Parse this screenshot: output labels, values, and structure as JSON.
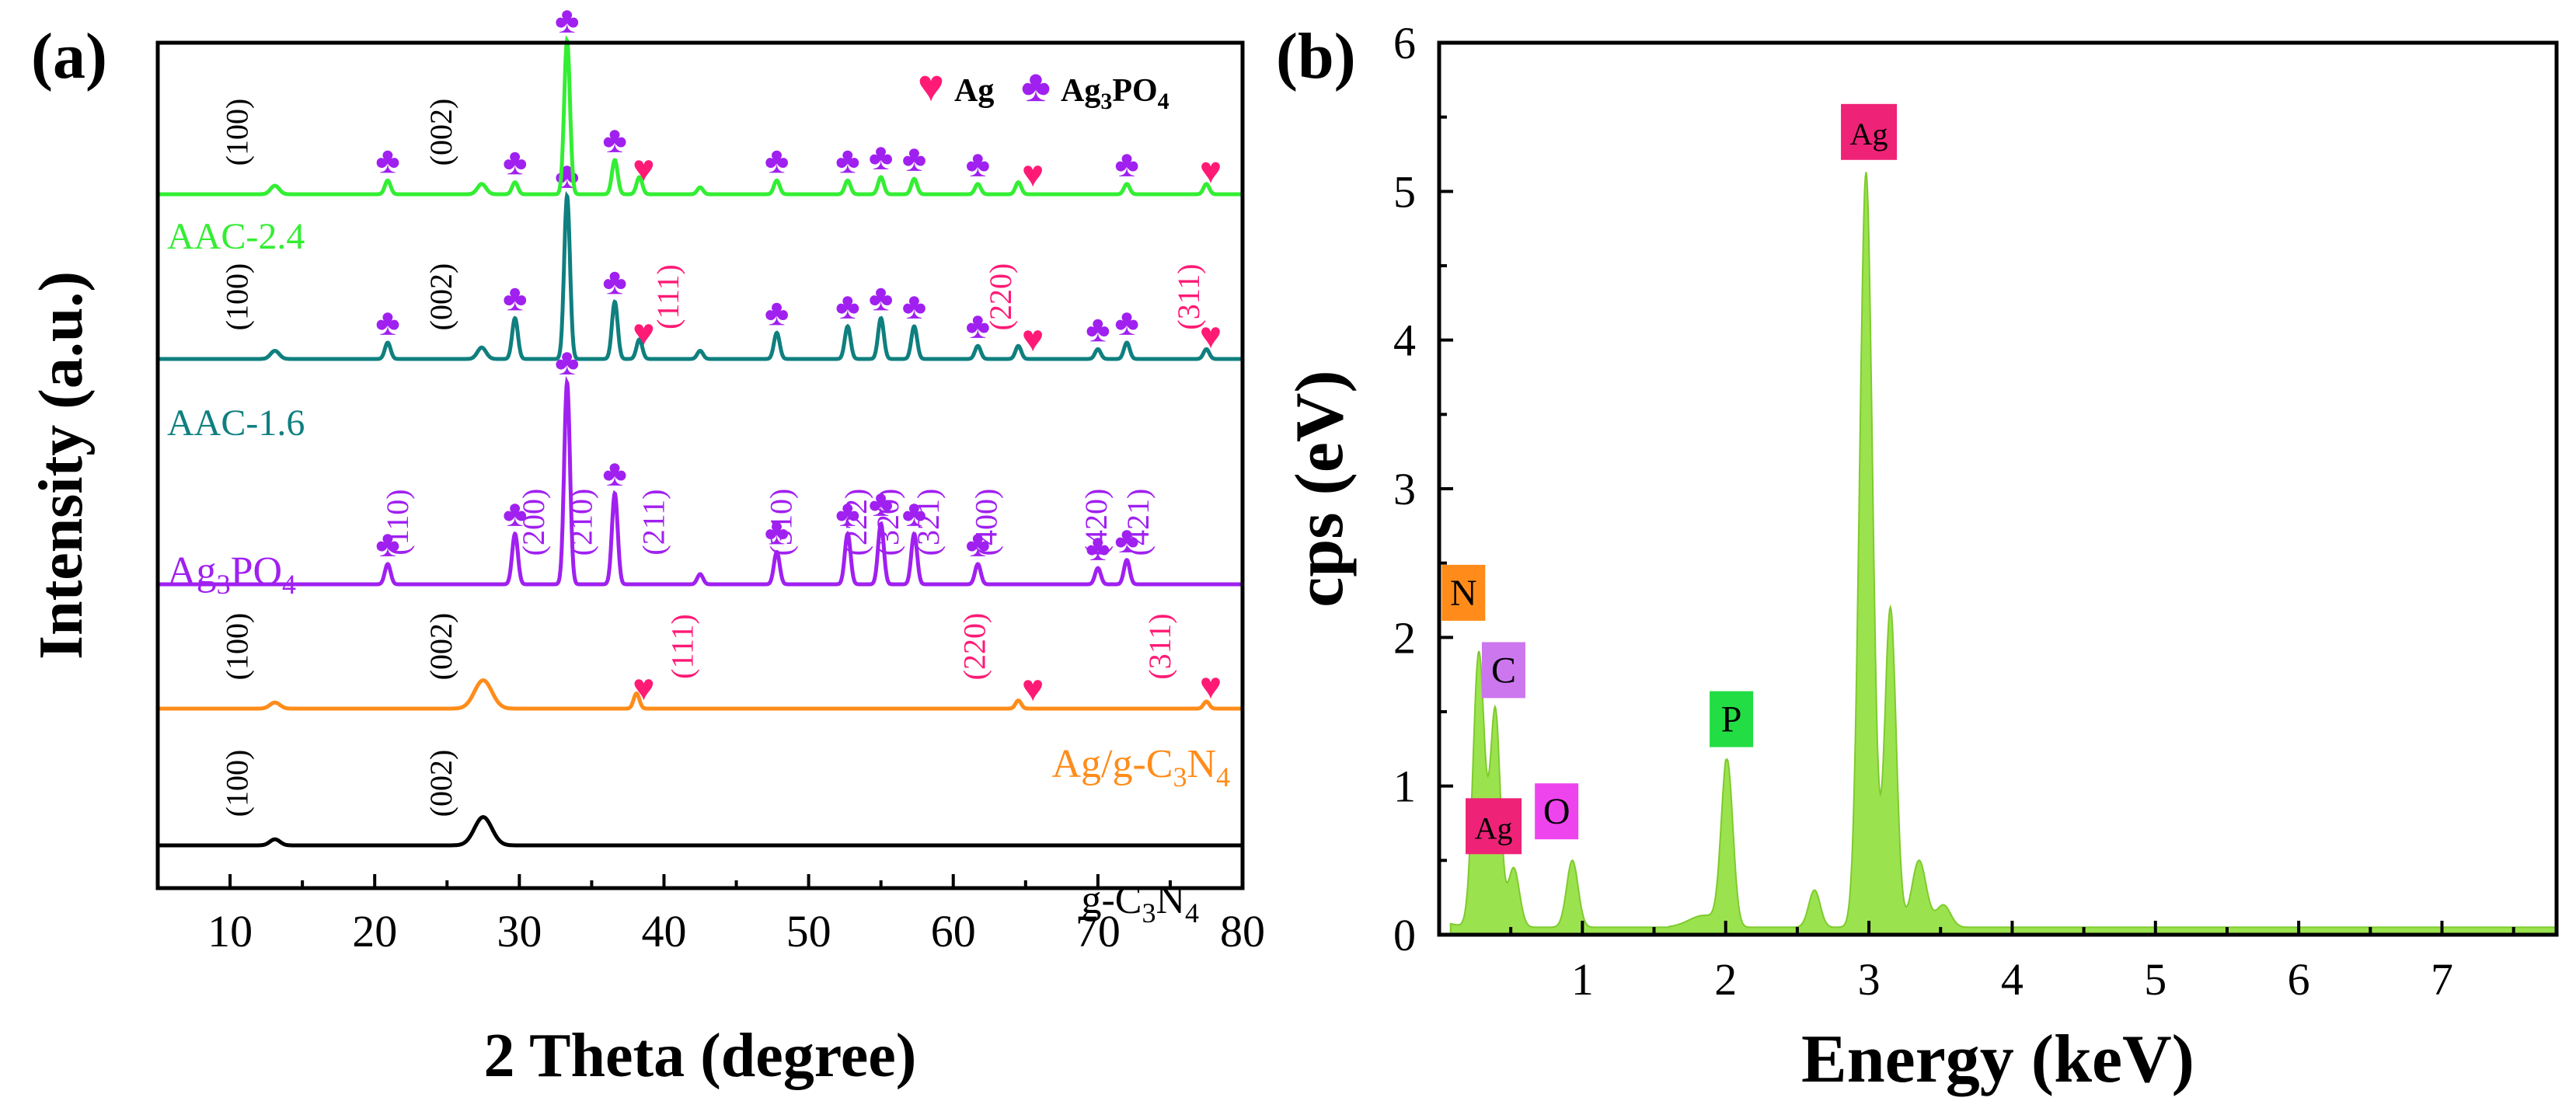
{
  "chart_data": [
    {
      "panel_label": "(a)",
      "type": "line",
      "xlabel": "2 Theta (degree)",
      "ylabel": "Intensity (a.u.)",
      "xlim": [
        5,
        80
      ],
      "xticks": [
        "10",
        "20",
        "30",
        "40",
        "50",
        "60",
        "70",
        "80"
      ],
      "legend": [
        {
          "symbol": "♥",
          "color": "#ff1a75",
          "label": "Ag"
        },
        {
          "symbol": "♣",
          "color": "#a020f0",
          "label": "Ag3PO4",
          "label_main": "Ag",
          "label_sub1": "3",
          "label_mid": "PO",
          "label_sub2": "4"
        }
      ],
      "series": [
        {
          "name": "g-C3N4",
          "label_main": "g-C",
          "label_sub1": "3",
          "label_mid": "N",
          "label_sub2": "4",
          "color": "#000000",
          "peaks": [
            {
              "x": 13.1,
              "h": 0.06,
              "w": 0.35
            },
            {
              "x": 27.5,
              "h": 0.28,
              "w": 0.6
            }
          ],
          "annotations": [
            {
              "x": 11.2,
              "text": "(100)",
              "color": "#000000"
            },
            {
              "x": 25.3,
              "text": "(002)",
              "color": "#000000"
            }
          ]
        },
        {
          "name": "Ag/g-C3N4",
          "label_main": "Ag/g-C",
          "label_sub1": "3",
          "label_mid": "N",
          "label_sub2": "4",
          "color": "#ff8c1a",
          "peaks": [
            {
              "x": 13.1,
              "h": 0.06,
              "w": 0.35
            },
            {
              "x": 27.5,
              "h": 0.28,
              "w": 0.6
            },
            {
              "x": 38.1,
              "h": 0.15,
              "w": 0.2
            },
            {
              "x": 64.5,
              "h": 0.08,
              "w": 0.2
            },
            {
              "x": 77.5,
              "h": 0.07,
              "w": 0.2
            }
          ],
          "annotations": [
            {
              "x": 11.2,
              "text": "(100)",
              "color": "#000000"
            },
            {
              "x": 25.3,
              "text": "(002)",
              "color": "#000000"
            },
            {
              "x": 42.0,
              "text": "(111)",
              "color": "#ff1a75"
            },
            {
              "x": 62.2,
              "text": "(220)",
              "color": "#ff1a75"
            },
            {
              "x": 75.0,
              "text": "(311)",
              "color": "#ff1a75"
            }
          ],
          "markers": [
            {
              "x": 38.6,
              "symbol": "♥"
            },
            {
              "x": 65.5,
              "symbol": "♥"
            },
            {
              "x": 77.8,
              "symbol": "♥"
            }
          ]
        },
        {
          "name": "Ag3PO4",
          "label_main": "Ag",
          "label_sub1": "3",
          "label_mid": "PO",
          "label_sub2": "4",
          "color": "#a020f0",
          "peaks": [
            {
              "x": 20.9,
              "h": 0.1,
              "w": 0.2
            },
            {
              "x": 29.7,
              "h": 0.25,
              "w": 0.2
            },
            {
              "x": 33.3,
              "h": 1.0,
              "w": 0.2
            },
            {
              "x": 36.6,
              "h": 0.45,
              "w": 0.2
            },
            {
              "x": 42.5,
              "h": 0.05,
              "w": 0.2
            },
            {
              "x": 47.8,
              "h": 0.16,
              "w": 0.2
            },
            {
              "x": 52.7,
              "h": 0.25,
              "w": 0.2
            },
            {
              "x": 55.0,
              "h": 0.3,
              "w": 0.2
            },
            {
              "x": 57.3,
              "h": 0.25,
              "w": 0.2
            },
            {
              "x": 61.7,
              "h": 0.1,
              "w": 0.2
            },
            {
              "x": 70.0,
              "h": 0.08,
              "w": 0.2
            },
            {
              "x": 72.0,
              "h": 0.12,
              "w": 0.2
            }
          ],
          "annotations": [
            {
              "x": 22.3,
              "text": "(110)",
              "color": "#a020f0"
            },
            {
              "x": 31.7,
              "text": "(200)",
              "color": "#a020f0"
            },
            {
              "x": 35.0,
              "text": "(210)",
              "color": "#a020f0"
            },
            {
              "x": 40.0,
              "text": "(211)",
              "color": "#a020f0"
            },
            {
              "x": 48.8,
              "text": "(310)",
              "color": "#a020f0"
            },
            {
              "x": 54.0,
              "text": "(222)",
              "color": "#a020f0"
            },
            {
              "x": 56.2,
              "text": "(320)",
              "color": "#a020f0"
            },
            {
              "x": 59.0,
              "text": "(321)",
              "color": "#a020f0"
            },
            {
              "x": 63.0,
              "text": "(400)",
              "color": "#a020f0"
            },
            {
              "x": 70.6,
              "text": "(420)",
              "color": "#a020f0"
            },
            {
              "x": 73.5,
              "text": "(421)",
              "color": "#a020f0"
            }
          ],
          "markers": [
            {
              "x": 20.9,
              "symbol": "♣"
            },
            {
              "x": 29.7,
              "symbol": "♣"
            },
            {
              "x": 33.3,
              "symbol": "♣"
            },
            {
              "x": 36.6,
              "symbol": "♣"
            },
            {
              "x": 47.8,
              "symbol": "♣"
            },
            {
              "x": 52.7,
              "symbol": "♣"
            },
            {
              "x": 55.0,
              "symbol": "♣"
            },
            {
              "x": 57.3,
              "symbol": "♣"
            },
            {
              "x": 61.7,
              "symbol": "♣"
            },
            {
              "x": 70.0,
              "symbol": "♣"
            },
            {
              "x": 72.0,
              "symbol": "♣"
            }
          ]
        },
        {
          "name": "AAC-1.6",
          "color": "#0f7f7f",
          "peaks": [
            {
              "x": 13.1,
              "h": 0.05,
              "w": 0.3
            },
            {
              "x": 20.9,
              "h": 0.1,
              "w": 0.2
            },
            {
              "x": 27.4,
              "h": 0.07,
              "w": 0.3
            },
            {
              "x": 29.7,
              "h": 0.25,
              "w": 0.2
            },
            {
              "x": 33.3,
              "h": 1.0,
              "w": 0.2
            },
            {
              "x": 36.6,
              "h": 0.35,
              "w": 0.2
            },
            {
              "x": 38.3,
              "h": 0.12,
              "w": 0.2
            },
            {
              "x": 42.5,
              "h": 0.05,
              "w": 0.2
            },
            {
              "x": 47.8,
              "h": 0.16,
              "w": 0.2
            },
            {
              "x": 52.7,
              "h": 0.2,
              "w": 0.2
            },
            {
              "x": 55.0,
              "h": 0.25,
              "w": 0.2
            },
            {
              "x": 57.3,
              "h": 0.2,
              "w": 0.2
            },
            {
              "x": 61.7,
              "h": 0.08,
              "w": 0.2
            },
            {
              "x": 64.5,
              "h": 0.08,
              "w": 0.2
            },
            {
              "x": 70.0,
              "h": 0.06,
              "w": 0.2
            },
            {
              "x": 72.0,
              "h": 0.1,
              "w": 0.2
            },
            {
              "x": 77.5,
              "h": 0.06,
              "w": 0.2
            }
          ],
          "annotations": [
            {
              "x": 11.2,
              "text": "(100)",
              "color": "#000000"
            },
            {
              "x": 25.3,
              "text": "(002)",
              "color": "#000000"
            },
            {
              "x": 41.0,
              "text": "(111)",
              "color": "#ff1a75"
            },
            {
              "x": 64.0,
              "text": "(220)",
              "color": "#ff1a75"
            },
            {
              "x": 77.0,
              "text": "(311)",
              "color": "#ff1a75"
            }
          ],
          "markers": [
            {
              "x": 20.9,
              "symbol": "♣"
            },
            {
              "x": 29.7,
              "symbol": "♣"
            },
            {
              "x": 33.3,
              "symbol": "♣"
            },
            {
              "x": 36.6,
              "symbol": "♣"
            },
            {
              "x": 38.6,
              "symbol": "♥"
            },
            {
              "x": 47.8,
              "symbol": "♣"
            },
            {
              "x": 52.7,
              "symbol": "♣"
            },
            {
              "x": 55.0,
              "symbol": "♣"
            },
            {
              "x": 57.3,
              "symbol": "♣"
            },
            {
              "x": 61.7,
              "symbol": "♣"
            },
            {
              "x": 65.5,
              "symbol": "♥"
            },
            {
              "x": 70.0,
              "symbol": "♣"
            },
            {
              "x": 72.0,
              "symbol": "♣"
            },
            {
              "x": 77.8,
              "symbol": "♥"
            }
          ]
        },
        {
          "name": "AAC-2.4",
          "color": "#33ee33",
          "peaks": [
            {
              "x": 13.1,
              "h": 0.05,
              "w": 0.3
            },
            {
              "x": 20.9,
              "h": 0.08,
              "w": 0.2
            },
            {
              "x": 27.4,
              "h": 0.06,
              "w": 0.3
            },
            {
              "x": 29.7,
              "h": 0.07,
              "w": 0.2
            },
            {
              "x": 33.3,
              "h": 0.9,
              "w": 0.2
            },
            {
              "x": 36.6,
              "h": 0.2,
              "w": 0.2
            },
            {
              "x": 38.3,
              "h": 0.1,
              "w": 0.2
            },
            {
              "x": 42.5,
              "h": 0.04,
              "w": 0.2
            },
            {
              "x": 47.8,
              "h": 0.08,
              "w": 0.2
            },
            {
              "x": 52.7,
              "h": 0.08,
              "w": 0.2
            },
            {
              "x": 55.0,
              "h": 0.1,
              "w": 0.2
            },
            {
              "x": 57.3,
              "h": 0.09,
              "w": 0.2
            },
            {
              "x": 61.7,
              "h": 0.06,
              "w": 0.2
            },
            {
              "x": 64.5,
              "h": 0.07,
              "w": 0.2
            },
            {
              "x": 72.0,
              "h": 0.06,
              "w": 0.2
            },
            {
              "x": 77.5,
              "h": 0.06,
              "w": 0.2
            }
          ],
          "annotations": [
            {
              "x": 11.2,
              "text": "(100)",
              "color": "#000000"
            },
            {
              "x": 25.3,
              "text": "(002)",
              "color": "#000000"
            }
          ],
          "markers": [
            {
              "x": 20.9,
              "symbol": "♣"
            },
            {
              "x": 29.7,
              "symbol": "♣"
            },
            {
              "x": 33.3,
              "symbol": "♣"
            },
            {
              "x": 36.6,
              "symbol": "♣"
            },
            {
              "x": 38.6,
              "symbol": "♥"
            },
            {
              "x": 47.8,
              "symbol": "♣"
            },
            {
              "x": 52.7,
              "symbol": "♣"
            },
            {
              "x": 55.0,
              "symbol": "♣"
            },
            {
              "x": 57.3,
              "symbol": "♣"
            },
            {
              "x": 61.7,
              "symbol": "♣"
            },
            {
              "x": 65.5,
              "symbol": "♥"
            },
            {
              "x": 72.0,
              "symbol": "♣"
            },
            {
              "x": 77.8,
              "symbol": "♥"
            }
          ]
        }
      ]
    },
    {
      "panel_label": "(b)",
      "type": "area",
      "xlabel": "Energy (keV)",
      "ylabel": "cps (eV)",
      "xlim": [
        0.0,
        7.8
      ],
      "ylim": [
        0,
        6
      ],
      "xticks": [
        "1",
        "2",
        "3",
        "4",
        "5",
        "6",
        "7"
      ],
      "yticks": [
        "0",
        "1",
        "2",
        "3",
        "4",
        "5",
        "6"
      ],
      "fill_color": "#9be34e",
      "peaks": [
        {
          "x": 0.277,
          "h": 1.85,
          "w": 0.04
        },
        {
          "x": 0.392,
          "h": 1.45,
          "w": 0.035
        },
        {
          "x": 0.52,
          "h": 0.4,
          "w": 0.04
        },
        {
          "x": 0.93,
          "h": 0.45,
          "w": 0.04
        },
        {
          "x": 2.01,
          "h": 1.13,
          "w": 0.04
        },
        {
          "x": 2.62,
          "h": 0.25,
          "w": 0.04
        },
        {
          "x": 2.98,
          "h": 5.08,
          "w": 0.045
        },
        {
          "x": 3.15,
          "h": 2.15,
          "w": 0.04
        },
        {
          "x": 3.35,
          "h": 0.45,
          "w": 0.05
        },
        {
          "x": 3.52,
          "h": 0.15,
          "w": 0.05
        }
      ],
      "element_labels": [
        {
          "text": "Ag",
          "x": 3.0,
          "y": 5.4,
          "bg": "#ee2277"
        },
        {
          "text": "N",
          "x": 0.17,
          "y": 2.3,
          "bg": "#ff8c1a"
        },
        {
          "text": "C",
          "x": 0.45,
          "y": 1.78,
          "bg": "#cc77ee"
        },
        {
          "text": "P",
          "x": 2.04,
          "y": 1.45,
          "bg": "#22dd44"
        },
        {
          "text": "Ag",
          "x": 0.38,
          "y": 0.73,
          "bg": "#ee2277"
        },
        {
          "text": "O",
          "x": 0.82,
          "y": 0.83,
          "bg": "#ee44ee"
        }
      ]
    }
  ]
}
